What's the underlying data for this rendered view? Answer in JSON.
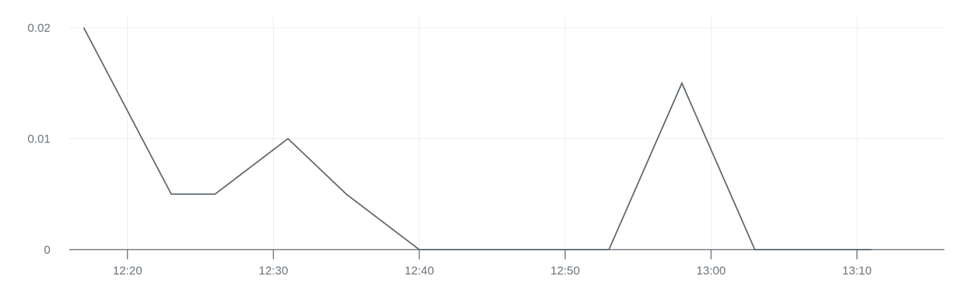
{
  "chart_data": {
    "type": "line",
    "x": [
      "12:17",
      "12:23",
      "12:26",
      "12:31",
      "12:35",
      "12:40",
      "12:53",
      "12:58",
      "13:03",
      "13:11"
    ],
    "series": [
      {
        "values": [
          0.02,
          0.005,
          0.005,
          0.01,
          0.005,
          0,
          0,
          0.015,
          0,
          0
        ],
        "color": "#5f6a71"
      }
    ],
    "x_ticks": [
      "12:20",
      "12:30",
      "12:40",
      "12:50",
      "13:00",
      "13:10"
    ],
    "y_ticks": [
      0,
      0.01,
      0.02
    ],
    "y_tick_labels": [
      "0",
      "0.01",
      "0.02"
    ],
    "xlim": [
      "12:16",
      "13:16"
    ],
    "ylim": [
      0,
      0.02
    ],
    "grid": true,
    "title": "",
    "xlabel": "",
    "ylabel": ""
  }
}
